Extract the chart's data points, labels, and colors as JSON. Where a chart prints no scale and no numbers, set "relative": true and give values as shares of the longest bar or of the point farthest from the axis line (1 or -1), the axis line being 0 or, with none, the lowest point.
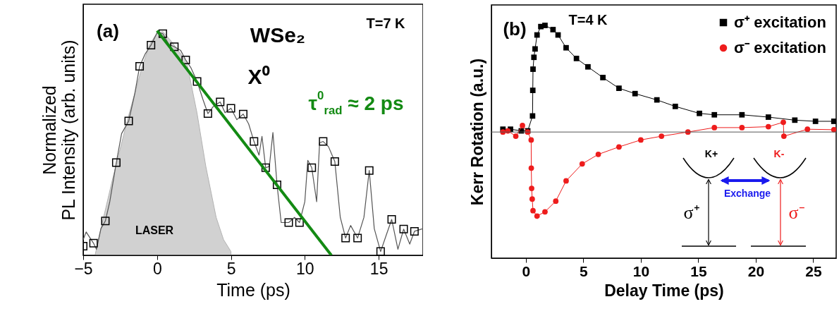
{
  "chart_data": [
    {
      "type": "line",
      "xlabel": "Time (ps)",
      "ylabel": "Normalized PL Intensity (arb. units)",
      "xlim": [
        -5,
        18
      ],
      "xticks": [
        -5,
        0,
        5,
        10,
        15
      ],
      "relative": true,
      "legend": false,
      "annotations": [
        "(a)",
        "WSe₂",
        "X⁰",
        "τ$^{0}$$_{rad}$ ≈ 2 ps",
        "T=7 K",
        "LASER"
      ],
      "series": [
        {
          "type": "area",
          "color": "#9a9a9a",
          "x": [
            -4.2,
            -3.8,
            -3,
            -2,
            -1,
            -0.5,
            0,
            0.4,
            1,
            2,
            2.7,
            3.3,
            4,
            4.5,
            5
          ],
          "values": [
            0.0,
            0.119,
            0.343,
            0.604,
            0.842,
            0.939,
            0.991,
            0.996,
            0.95,
            0.862,
            0.635,
            0.396,
            0.169,
            0.07,
            0.017
          ]
        },
        {
          "color": "#555555",
          "x": [
            -5,
            -4.8,
            -4.3,
            -4.1,
            -3.8,
            -3.5,
            -3.2,
            -2.76,
            -2.4,
            -1.92,
            -1.5,
            -1.18,
            -0.8,
            -0.41,
            0,
            0.39,
            0.8,
            1.17,
            1.6,
            1.94,
            2.3,
            2.71,
            3.1,
            3.44,
            3.8,
            4.27,
            4.6,
            5.0,
            5.4,
            5.83,
            6.2,
            6.56,
            6.9,
            7.1,
            7.35,
            7.6,
            7.84,
            8.12,
            8.4,
            8.91,
            9.3,
            9.64,
            10.0,
            10.2,
            10.47,
            10.8,
            11.0,
            11.24,
            11.6,
            12.03,
            12.4,
            12.76,
            13.1,
            13.57,
            14.0,
            14.36,
            14.7,
            15.13,
            15.5,
            15.88,
            16.3,
            16.69,
            17.1,
            17.42,
            18
          ],
          "values": [
            0.07,
            0.104,
            0.054,
            0.027,
            0.119,
            0.153,
            0.239,
            0.413,
            0.542,
            0.598,
            0.723,
            0.842,
            0.897,
            0.936,
            0.991,
            0.987,
            0.939,
            0.929,
            0.912,
            0.87,
            0.834,
            0.774,
            0.695,
            0.631,
            0.662,
            0.683,
            0.635,
            0.655,
            0.604,
            0.629,
            0.585,
            0.507,
            0.446,
            0.53,
            0.39,
            0.396,
            0.547,
            0.314,
            0.146,
            0.146,
            0.169,
            0.146,
            0.239,
            0.423,
            0.39,
            0.239,
            0.501,
            0.507,
            0.484,
            0.418,
            0.169,
            0.077,
            0.133,
            0.077,
            0.169,
            0.378,
            0.119,
            0.017,
            0.088,
            0.16,
            0.027,
            0.117,
            0.05,
            0.107,
            0.119
          ]
        },
        {
          "type": "scatter",
          "marker": "square",
          "color": "#000000",
          "x": [
            -5,
            -4.3,
            -3.5,
            -2.76,
            -1.92,
            -1.18,
            -0.41,
            0.39,
            1.17,
            1.94,
            2.71,
            3.44,
            4.27,
            5.0,
            5.83,
            6.56,
            7.35,
            8.12,
            8.91,
            9.64,
            10.47,
            11.24,
            12.03,
            12.76,
            13.57,
            14.36,
            15.13,
            15.88,
            16.69,
            17.42
          ],
          "values": [
            0.041,
            0.054,
            0.153,
            0.413,
            0.598,
            0.842,
            0.936,
            0.987,
            0.929,
            0.87,
            0.774,
            0.631,
            0.683,
            0.655,
            0.629,
            0.507,
            0.39,
            0.314,
            0.146,
            0.146,
            0.39,
            0.507,
            0.418,
            0.077,
            0.077,
            0.378,
            0.017,
            0.16,
            0.117,
            0.107
          ]
        },
        {
          "color": "#138a13",
          "x": [
            0,
            11.8
          ],
          "values": [
            1,
            0
          ]
        }
      ]
    },
    {
      "type": "line",
      "xlabel": "Delay Time (ps)",
      "ylabel": "Kerr Rotation (a.u.)",
      "xlim": [
        -3,
        27
      ],
      "xticks": [
        0,
        5,
        10,
        15,
        20,
        25
      ],
      "relative": true,
      "legend": "top right",
      "annotations": [
        "(b)",
        "T=4 K",
        "K+",
        "K-",
        "Exchange",
        "σ⁺",
        "σ⁻"
      ],
      "ref_lines": [
        {
          "axis": "y",
          "value": 0.542,
          "color": "#555555"
        }
      ],
      "series": [
        {
          "name": "σ⁺ excitation",
          "marker": "square",
          "color": "#000000",
          "x": [
            -2.0,
            -1.34,
            -0.4,
            0.16,
            0.58,
            0.6,
            0.62,
            0.7,
            0.8,
            0.97,
            1.3,
            1.66,
            2.36,
            2.8,
            3.5,
            4.4,
            5.4,
            6.7,
            8.1,
            9.5,
            11.4,
            13.0,
            15.1,
            16.4,
            18.8,
            21.1,
            23.4,
            25.2,
            26.8
          ],
          "values": [
            0.554,
            0.554,
            0.547,
            0.547,
            0.611,
            0.721,
            0.812,
            0.863,
            0.899,
            0.959,
            0.995,
            1.0,
            0.982,
            0.959,
            0.904,
            0.858,
            0.822,
            0.776,
            0.73,
            0.707,
            0.68,
            0.652,
            0.622,
            0.616,
            0.616,
            0.606,
            0.593,
            0.588,
            0.588
          ]
        },
        {
          "name": "σ⁻ excitation",
          "marker": "circle",
          "color": "#ee1c1c",
          "x": [
            -2,
            -1.57,
            -0.88,
            -0.3,
            0.16,
            0.46,
            0.47,
            0.5,
            0.55,
            0.62,
            0.97,
            1.66,
            2.6,
            3.5,
            4.9,
            6.3,
            8.1,
            10.0,
            11.8,
            14.1,
            16.4,
            18.8,
            21.1,
            22.4,
            22.45,
            24.5,
            26.8
          ],
          "values": [
            0.542,
            0.547,
            0.524,
            0.57,
            0.542,
            0.508,
            0.387,
            0.3,
            0.254,
            0.204,
            0.181,
            0.199,
            0.245,
            0.332,
            0.405,
            0.446,
            0.478,
            0.508,
            0.524,
            0.542,
            0.561,
            0.561,
            0.565,
            0.584,
            0.524,
            0.554,
            0.552
          ]
        }
      ]
    }
  ]
}
